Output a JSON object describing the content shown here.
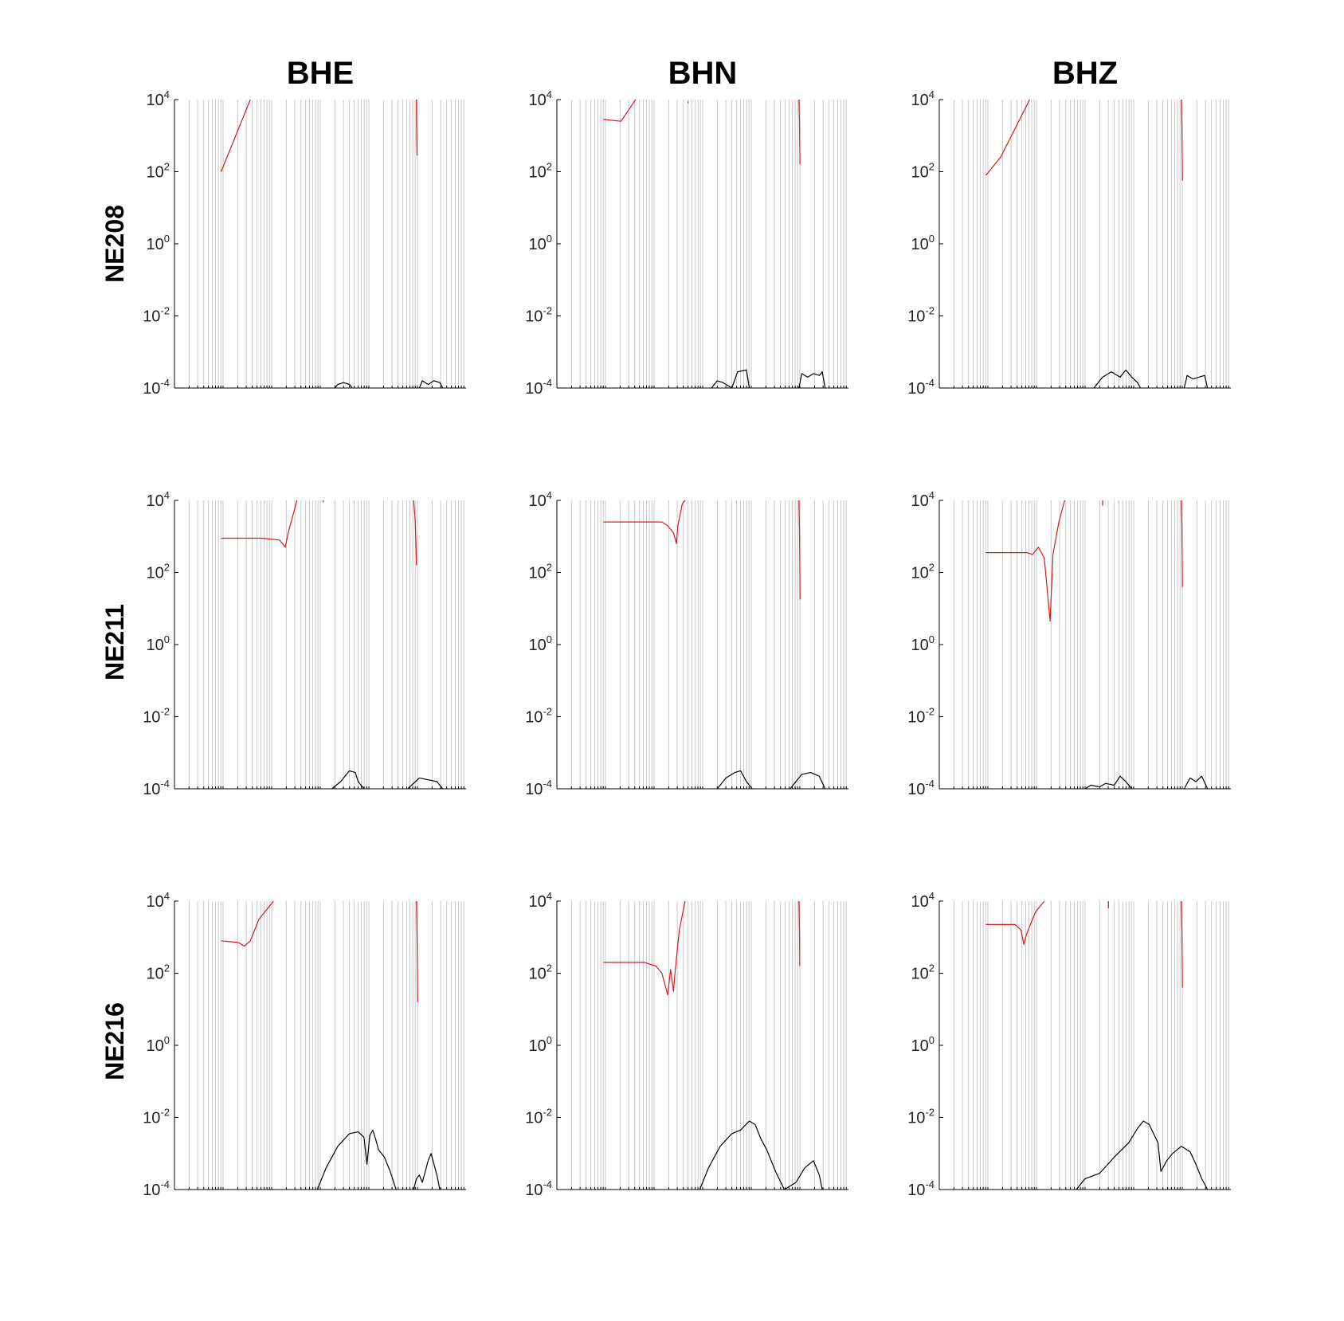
{
  "figure": {
    "columns": [
      "BHE",
      "BHN",
      "BHZ"
    ],
    "rows": [
      "NE208",
      "NE211",
      "NE216"
    ]
  },
  "colors": {
    "red_curve": "#d7191c",
    "black_curve": "#000000",
    "gridline": "#c8c8c8",
    "axis": "#000000"
  },
  "chart_data": {
    "type": "line",
    "layout": "3x3 small multiples",
    "grid": "vertical gridlines only",
    "yscale": "log",
    "ylim": [
      0.0001,
      10000
    ],
    "yticks": [
      {
        "base": "10",
        "exp": "4"
      },
      {
        "base": "10",
        "exp": "2"
      },
      {
        "base": "10",
        "exp": "0"
      },
      {
        "base": "10",
        "exp": "-2"
      },
      {
        "base": "10",
        "exp": "-4"
      }
    ],
    "xticks_labeled": false,
    "panels": [
      {
        "station": "NE208",
        "channel": "BHE",
        "red": [
          [
            [
              0.16,
              2
            ],
            [
              0.26,
              4
            ]
          ],
          [
            [
              0.83,
              4
            ],
            [
              0.83,
              3.6
            ],
            [
              0.831,
              3.0
            ],
            [
              0.832,
              2.45
            ]
          ]
        ],
        "black": [
          [
            [
              0.55,
              -4
            ],
            [
              0.56,
              -3.9
            ],
            [
              0.58,
              -3.85
            ],
            [
              0.6,
              -3.9
            ],
            [
              0.61,
              -4
            ]
          ],
          [
            [
              0.84,
              -4
            ],
            [
              0.85,
              -3.8
            ],
            [
              0.87,
              -3.9
            ],
            [
              0.89,
              -3.8
            ],
            [
              0.91,
              -3.85
            ],
            [
              0.92,
              -4
            ]
          ]
        ]
      },
      {
        "station": "NE208",
        "channel": "BHN",
        "red": [
          [
            [
              0.16,
              3.45
            ],
            [
              0.22,
              3.4
            ],
            [
              0.27,
              4
            ]
          ],
          [
            [
              0.45,
              3.95
            ],
            [
              0.45,
              3.9
            ]
          ],
          [
            [
              0.83,
              4
            ],
            [
              0.832,
              3.4
            ],
            [
              0.833,
              2.6
            ],
            [
              0.834,
              2.2
            ]
          ]
        ],
        "black": [
          [
            [
              0.53,
              -4
            ],
            [
              0.55,
              -3.8
            ],
            [
              0.57,
              -3.85
            ],
            [
              0.6,
              -4
            ],
            [
              0.62,
              -3.55
            ],
            [
              0.65,
              -3.5
            ],
            [
              0.66,
              -4
            ]
          ],
          [
            [
              0.83,
              -4
            ],
            [
              0.84,
              -3.6
            ],
            [
              0.86,
              -3.7
            ],
            [
              0.88,
              -3.6
            ],
            [
              0.9,
              -3.65
            ],
            [
              0.91,
              -3.55
            ],
            [
              0.92,
              -4
            ]
          ]
        ]
      },
      {
        "station": "NE208",
        "channel": "BHZ",
        "red": [
          [
            [
              0.16,
              1.9
            ],
            [
              0.21,
              2.4
            ],
            [
              0.31,
              4
            ]
          ],
          [
            [
              0.83,
              4
            ],
            [
              0.832,
              3.3
            ],
            [
              0.833,
              2.5
            ],
            [
              0.834,
              1.75
            ]
          ]
        ],
        "black": [
          [
            [
              0.53,
              -4
            ],
            [
              0.56,
              -3.7
            ],
            [
              0.59,
              -3.55
            ],
            [
              0.62,
              -3.7
            ],
            [
              0.64,
              -3.5
            ],
            [
              0.66,
              -3.7
            ],
            [
              0.68,
              -3.85
            ],
            [
              0.69,
              -4
            ]
          ],
          [
            [
              0.84,
              -4
            ],
            [
              0.85,
              -3.65
            ],
            [
              0.87,
              -3.75
            ],
            [
              0.89,
              -3.7
            ],
            [
              0.91,
              -3.65
            ],
            [
              0.92,
              -4
            ]
          ]
        ]
      },
      {
        "station": "NE211",
        "channel": "BHE",
        "red": [
          [
            [
              0.16,
              2.95
            ],
            [
              0.3,
              2.95
            ],
            [
              0.36,
              2.9
            ],
            [
              0.38,
              2.7
            ],
            [
              0.39,
              3.1
            ],
            [
              0.41,
              3.7
            ],
            [
              0.42,
              4
            ]
          ],
          [
            [
              0.51,
              4
            ],
            [
              0.51,
              3.95
            ]
          ],
          [
            [
              0.82,
              4
            ],
            [
              0.825,
              3.5
            ],
            [
              0.828,
              2.9
            ],
            [
              0.83,
              2.2
            ]
          ]
        ],
        "black": [
          [
            [
              0.54,
              -4
            ],
            [
              0.57,
              -3.8
            ],
            [
              0.6,
              -3.5
            ],
            [
              0.62,
              -3.55
            ],
            [
              0.63,
              -3.8
            ],
            [
              0.65,
              -4
            ]
          ],
          [
            [
              0.8,
              -4
            ],
            [
              0.84,
              -3.7
            ],
            [
              0.87,
              -3.75
            ],
            [
              0.9,
              -3.8
            ],
            [
              0.92,
              -4
            ]
          ]
        ]
      },
      {
        "station": "NE211",
        "channel": "BHN",
        "red": [
          [
            [
              0.16,
              3.4
            ],
            [
              0.36,
              3.4
            ],
            [
              0.38,
              3.3
            ],
            [
              0.4,
              3.1
            ],
            [
              0.41,
              2.8
            ],
            [
              0.415,
              3.3
            ],
            [
              0.43,
              3.9
            ],
            [
              0.44,
              4
            ]
          ],
          [
            [
              0.83,
              4
            ],
            [
              0.832,
              3.2
            ],
            [
              0.833,
              2.3
            ],
            [
              0.834,
              1.25
            ]
          ]
        ],
        "black": [
          [
            [
              0.55,
              -4
            ],
            [
              0.58,
              -3.7
            ],
            [
              0.61,
              -3.55
            ],
            [
              0.63,
              -3.5
            ],
            [
              0.65,
              -3.8
            ],
            [
              0.67,
              -4
            ]
          ],
          [
            [
              0.8,
              -4
            ],
            [
              0.84,
              -3.6
            ],
            [
              0.87,
              -3.55
            ],
            [
              0.9,
              -3.65
            ],
            [
              0.92,
              -4
            ]
          ]
        ]
      },
      {
        "station": "NE211",
        "channel": "BHZ",
        "red": [
          [
            [
              0.16,
              2.55
            ],
            [
              0.3,
              2.55
            ],
            [
              0.32,
              2.5
            ],
            [
              0.34,
              2.7
            ],
            [
              0.36,
              2.4
            ],
            [
              0.38,
              0.65
            ],
            [
              0.39,
              2.5
            ],
            [
              0.41,
              3.4
            ],
            [
              0.43,
              4
            ]
          ],
          [
            [
              0.56,
              4
            ],
            [
              0.56,
              3.85
            ]
          ],
          [
            [
              0.83,
              4
            ],
            [
              0.832,
              3.3
            ],
            [
              0.833,
              2.4
            ],
            [
              0.834,
              1.6
            ]
          ]
        ],
        "black": [
          [
            [
              0.5,
              -4
            ],
            [
              0.52,
              -3.9
            ],
            [
              0.55,
              -3.95
            ],
            [
              0.57,
              -3.85
            ],
            [
              0.6,
              -3.9
            ],
            [
              0.62,
              -3.65
            ],
            [
              0.64,
              -3.8
            ],
            [
              0.66,
              -4
            ]
          ],
          [
            [
              0.84,
              -4
            ],
            [
              0.86,
              -3.7
            ],
            [
              0.88,
              -3.8
            ],
            [
              0.9,
              -3.65
            ],
            [
              0.92,
              -4
            ]
          ]
        ]
      },
      {
        "station": "NE216",
        "channel": "BHE",
        "red": [
          [
            [
              0.16,
              2.9
            ],
            [
              0.22,
              2.85
            ],
            [
              0.24,
              2.75
            ],
            [
              0.26,
              2.9
            ],
            [
              0.29,
              3.5
            ],
            [
              0.34,
              4
            ]
          ],
          [
            [
              0.83,
              4
            ],
            [
              0.832,
              3.0
            ],
            [
              0.833,
              2.0
            ],
            [
              0.834,
              1.2
            ]
          ]
        ],
        "black": [
          [
            [
              0.49,
              -4
            ],
            [
              0.52,
              -3.4
            ],
            [
              0.56,
              -2.8
            ],
            [
              0.6,
              -2.45
            ],
            [
              0.63,
              -2.4
            ],
            [
              0.65,
              -2.55
            ],
            [
              0.66,
              -3.3
            ],
            [
              0.67,
              -2.5
            ],
            [
              0.68,
              -2.35
            ],
            [
              0.69,
              -2.6
            ],
            [
              0.7,
              -2.9
            ],
            [
              0.72,
              -3.1
            ],
            [
              0.74,
              -3.5
            ],
            [
              0.76,
              -4
            ]
          ],
          [
            [
              0.82,
              -4
            ],
            [
              0.83,
              -3.7
            ],
            [
              0.84,
              -3.6
            ],
            [
              0.85,
              -3.8
            ],
            [
              0.86,
              -3.5
            ],
            [
              0.87,
              -3.2
            ],
            [
              0.88,
              -3.0
            ],
            [
              0.9,
              -3.6
            ],
            [
              0.91,
              -4
            ]
          ]
        ]
      },
      {
        "station": "NE216",
        "channel": "BHN",
        "red": [
          [
            [
              0.16,
              2.3
            ],
            [
              0.3,
              2.3
            ],
            [
              0.34,
              2.2
            ],
            [
              0.36,
              2.0
            ],
            [
              0.38,
              1.4
            ],
            [
              0.39,
              2.1
            ],
            [
              0.4,
              1.5
            ],
            [
              0.405,
              2.0
            ],
            [
              0.42,
              3.2
            ],
            [
              0.44,
              4
            ]
          ],
          [
            [
              0.83,
              4
            ],
            [
              0.832,
              3.2
            ],
            [
              0.833,
              2.2
            ]
          ]
        ],
        "black": [
          [
            [
              0.49,
              -4
            ],
            [
              0.52,
              -3.4
            ],
            [
              0.56,
              -2.8
            ],
            [
              0.6,
              -2.45
            ],
            [
              0.63,
              -2.35
            ],
            [
              0.66,
              -2.1
            ],
            [
              0.68,
              -2.2
            ],
            [
              0.7,
              -2.6
            ],
            [
              0.72,
              -2.9
            ],
            [
              0.75,
              -3.5
            ],
            [
              0.78,
              -4
            ]
          ],
          [
            [
              0.78,
              -4
            ],
            [
              0.82,
              -3.8
            ],
            [
              0.85,
              -3.4
            ],
            [
              0.88,
              -3.2
            ],
            [
              0.9,
              -3.6
            ],
            [
              0.91,
              -4
            ]
          ]
        ]
      },
      {
        "station": "NE216",
        "channel": "BHZ",
        "red": [
          [
            [
              0.16,
              3.35
            ],
            [
              0.26,
              3.35
            ],
            [
              0.28,
              3.2
            ],
            [
              0.29,
              2.8
            ],
            [
              0.3,
              3.1
            ],
            [
              0.33,
              3.7
            ],
            [
              0.36,
              4
            ]
          ],
          [
            [
              0.58,
              4
            ],
            [
              0.58,
              3.8
            ]
          ],
          [
            [
              0.83,
              4
            ],
            [
              0.832,
              3.2
            ],
            [
              0.833,
              2.4
            ],
            [
              0.834,
              1.6
            ]
          ]
        ],
        "black": [
          [
            [
              0.47,
              -4
            ],
            [
              0.5,
              -3.7
            ],
            [
              0.55,
              -3.55
            ],
            [
              0.6,
              -3.1
            ],
            [
              0.65,
              -2.7
            ],
            [
              0.68,
              -2.3
            ],
            [
              0.7,
              -2.1
            ],
            [
              0.72,
              -2.2
            ],
            [
              0.75,
              -2.7
            ],
            [
              0.76,
              -3.5
            ],
            [
              0.78,
              -3.2
            ],
            [
              0.8,
              -3.0
            ],
            [
              0.83,
              -2.8
            ],
            [
              0.86,
              -2.95
            ],
            [
              0.88,
              -3.3
            ],
            [
              0.9,
              -3.7
            ],
            [
              0.92,
              -4
            ]
          ]
        ]
      }
    ]
  }
}
